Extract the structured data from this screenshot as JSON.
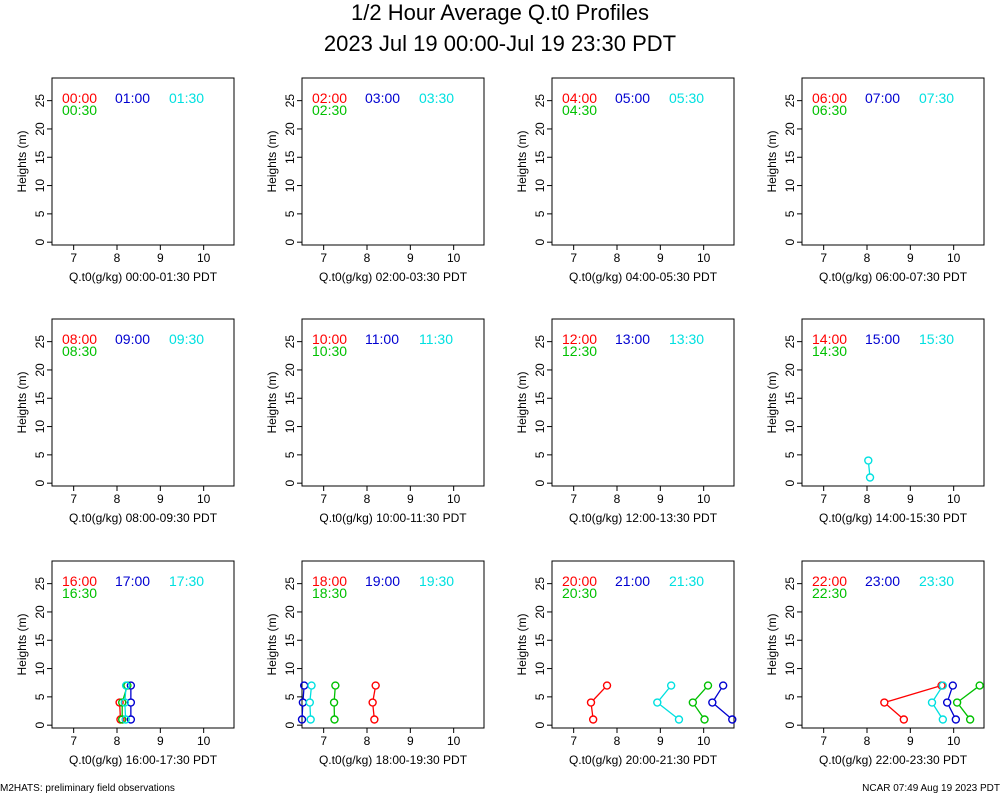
{
  "header": {
    "title": "1/2 Hour Average Q.t0 Profiles",
    "subtitle": "2023 Jul 19 00:00-Jul 19 23:30 PDT"
  },
  "footer": {
    "left": "M2HATS: preliminary field observations",
    "right": "NCAR 07:49 Aug 19 2023 PDT"
  },
  "colors": {
    "first": "#ff0000",
    "second": "#00c000",
    "third": "#0000d0",
    "fourth": "#00e0e0"
  },
  "chart_data": [
    {
      "type": "scatter",
      "xlabel": "Q.t0(g/kg) 00:00-01:30 PDT",
      "ylabel": "Heights (m)",
      "xlim": [
        6.5,
        10.7
      ],
      "ylim": [
        -0.5,
        29
      ],
      "xticks": [
        "7",
        "8",
        "9",
        "10"
      ],
      "yticks": [
        "0",
        "5",
        "10",
        "15",
        "20",
        "25"
      ],
      "series": [
        {
          "name": "00:00",
          "color": "#ff0000",
          "points": []
        },
        {
          "name": "00:30",
          "color": "#00c000",
          "points": []
        },
        {
          "name": "01:00",
          "color": "#0000d0",
          "points": []
        },
        {
          "name": "01:30",
          "color": "#00e0e0",
          "points": []
        }
      ]
    },
    {
      "type": "scatter",
      "xlabel": "Q.t0(g/kg) 02:00-03:30 PDT",
      "ylabel": "Heights (m)",
      "xlim": [
        6.5,
        10.7
      ],
      "ylim": [
        -0.5,
        29
      ],
      "xticks": [
        "7",
        "8",
        "9",
        "10"
      ],
      "yticks": [
        "0",
        "5",
        "10",
        "15",
        "20",
        "25"
      ],
      "series": [
        {
          "name": "02:00",
          "color": "#ff0000",
          "points": []
        },
        {
          "name": "02:30",
          "color": "#00c000",
          "points": []
        },
        {
          "name": "03:00",
          "color": "#0000d0",
          "points": []
        },
        {
          "name": "03:30",
          "color": "#00e0e0",
          "points": []
        }
      ]
    },
    {
      "type": "scatter",
      "xlabel": "Q.t0(g/kg) 04:00-05:30 PDT",
      "ylabel": "Heights (m)",
      "xlim": [
        6.5,
        10.7
      ],
      "ylim": [
        -0.5,
        29
      ],
      "xticks": [
        "7",
        "8",
        "9",
        "10"
      ],
      "yticks": [
        "0",
        "5",
        "10",
        "15",
        "20",
        "25"
      ],
      "series": [
        {
          "name": "04:00",
          "color": "#ff0000",
          "points": []
        },
        {
          "name": "04:30",
          "color": "#00c000",
          "points": []
        },
        {
          "name": "05:00",
          "color": "#0000d0",
          "points": []
        },
        {
          "name": "05:30",
          "color": "#00e0e0",
          "points": []
        }
      ]
    },
    {
      "type": "scatter",
      "xlabel": "Q.t0(g/kg) 06:00-07:30 PDT",
      "ylabel": "Heights (m)",
      "xlim": [
        6.5,
        10.7
      ],
      "ylim": [
        -0.5,
        29
      ],
      "xticks": [
        "7",
        "8",
        "9",
        "10"
      ],
      "yticks": [
        "0",
        "5",
        "10",
        "15",
        "20",
        "25"
      ],
      "series": [
        {
          "name": "06:00",
          "color": "#ff0000",
          "points": []
        },
        {
          "name": "06:30",
          "color": "#00c000",
          "points": []
        },
        {
          "name": "07:00",
          "color": "#0000d0",
          "points": []
        },
        {
          "name": "07:30",
          "color": "#00e0e0",
          "points": []
        }
      ]
    },
    {
      "type": "scatter",
      "xlabel": "Q.t0(g/kg) 08:00-09:30 PDT",
      "ylabel": "Heights (m)",
      "xlim": [
        6.5,
        10.7
      ],
      "ylim": [
        -0.5,
        29
      ],
      "xticks": [
        "7",
        "8",
        "9",
        "10"
      ],
      "yticks": [
        "0",
        "5",
        "10",
        "15",
        "20",
        "25"
      ],
      "series": [
        {
          "name": "08:00",
          "color": "#ff0000",
          "points": []
        },
        {
          "name": "08:30",
          "color": "#00c000",
          "points": []
        },
        {
          "name": "09:00",
          "color": "#0000d0",
          "points": []
        },
        {
          "name": "09:30",
          "color": "#00e0e0",
          "points": []
        }
      ]
    },
    {
      "type": "scatter",
      "xlabel": "Q.t0(g/kg) 10:00-11:30 PDT",
      "ylabel": "Heights (m)",
      "xlim": [
        6.5,
        10.7
      ],
      "ylim": [
        -0.5,
        29
      ],
      "xticks": [
        "7",
        "8",
        "9",
        "10"
      ],
      "yticks": [
        "0",
        "5",
        "10",
        "15",
        "20",
        "25"
      ],
      "series": [
        {
          "name": "10:00",
          "color": "#ff0000",
          "points": []
        },
        {
          "name": "10:30",
          "color": "#00c000",
          "points": []
        },
        {
          "name": "11:00",
          "color": "#0000d0",
          "points": []
        },
        {
          "name": "11:30",
          "color": "#00e0e0",
          "points": []
        }
      ]
    },
    {
      "type": "scatter",
      "xlabel": "Q.t0(g/kg) 12:00-13:30 PDT",
      "ylabel": "Heights (m)",
      "xlim": [
        6.5,
        10.7
      ],
      "ylim": [
        -0.5,
        29
      ],
      "xticks": [
        "7",
        "8",
        "9",
        "10"
      ],
      "yticks": [
        "0",
        "5",
        "10",
        "15",
        "20",
        "25"
      ],
      "series": [
        {
          "name": "12:00",
          "color": "#ff0000",
          "points": []
        },
        {
          "name": "12:30",
          "color": "#00c000",
          "points": []
        },
        {
          "name": "13:00",
          "color": "#0000d0",
          "points": []
        },
        {
          "name": "13:30",
          "color": "#00e0e0",
          "points": []
        }
      ]
    },
    {
      "type": "scatter",
      "xlabel": "Q.t0(g/kg) 14:00-15:30 PDT",
      "ylabel": "Heights (m)",
      "xlim": [
        6.5,
        10.7
      ],
      "ylim": [
        -0.5,
        29
      ],
      "xticks": [
        "7",
        "8",
        "9",
        "10"
      ],
      "yticks": [
        "0",
        "5",
        "10",
        "15",
        "20",
        "25"
      ],
      "series": [
        {
          "name": "14:00",
          "color": "#ff0000",
          "points": []
        },
        {
          "name": "14:30",
          "color": "#00c000",
          "points": []
        },
        {
          "name": "15:00",
          "color": "#0000d0",
          "points": []
        },
        {
          "name": "15:30",
          "color": "#00e0e0",
          "points": [
            [
              8.07,
              1
            ],
            [
              8.03,
              4
            ]
          ]
        }
      ]
    },
    {
      "type": "scatter",
      "xlabel": "Q.t0(g/kg) 16:00-17:30 PDT",
      "ylabel": "Heights (m)",
      "xlim": [
        6.5,
        10.7
      ],
      "ylim": [
        -0.5,
        29
      ],
      "xticks": [
        "7",
        "8",
        "9",
        "10"
      ],
      "yticks": [
        "0",
        "5",
        "10",
        "15",
        "20",
        "25"
      ],
      "series": [
        {
          "name": "16:00",
          "color": "#ff0000",
          "points": [
            [
              8.08,
              1
            ],
            [
              8.06,
              4
            ]
          ]
        },
        {
          "name": "16:30",
          "color": "#00c000",
          "points": [
            [
              8.12,
              1
            ],
            [
              8.12,
              4
            ],
            [
              8.24,
              7
            ]
          ]
        },
        {
          "name": "17:00",
          "color": "#0000d0",
          "points": [
            [
              8.32,
              1
            ],
            [
              8.32,
              4
            ],
            [
              8.32,
              7
            ]
          ]
        },
        {
          "name": "17:30",
          "color": "#00e0e0",
          "points": [
            [
              8.2,
              1
            ],
            [
              8.18,
              4
            ],
            [
              8.21,
              7
            ]
          ]
        }
      ]
    },
    {
      "type": "scatter",
      "xlabel": "Q.t0(g/kg) 18:00-19:30 PDT",
      "ylabel": "Heights (m)",
      "xlim": [
        6.5,
        10.7
      ],
      "ylim": [
        -0.5,
        29
      ],
      "xticks": [
        "7",
        "8",
        "9",
        "10"
      ],
      "yticks": [
        "0",
        "5",
        "10",
        "15",
        "20",
        "25"
      ],
      "series": [
        {
          "name": "18:00",
          "color": "#ff0000",
          "points": [
            [
              8.17,
              1
            ],
            [
              8.13,
              4
            ],
            [
              8.2,
              7
            ]
          ]
        },
        {
          "name": "18:30",
          "color": "#00c000",
          "points": [
            [
              7.25,
              1
            ],
            [
              7.24,
              4
            ],
            [
              7.27,
              7
            ]
          ]
        },
        {
          "name": "19:00",
          "color": "#0000d0",
          "points": [
            [
              6.5,
              1
            ],
            [
              6.52,
              4
            ],
            [
              6.55,
              7
            ]
          ]
        },
        {
          "name": "19:30",
          "color": "#00e0e0",
          "points": [
            [
              6.7,
              1
            ],
            [
              6.68,
              4
            ],
            [
              6.72,
              7
            ]
          ]
        }
      ]
    },
    {
      "type": "scatter",
      "xlabel": "Q.t0(g/kg) 20:00-21:30 PDT",
      "ylabel": "Heights (m)",
      "xlim": [
        6.5,
        10.7
      ],
      "ylim": [
        -0.5,
        29
      ],
      "xticks": [
        "7",
        "8",
        "9",
        "10"
      ],
      "yticks": [
        "0",
        "5",
        "10",
        "15",
        "20",
        "25"
      ],
      "series": [
        {
          "name": "20:00",
          "color": "#ff0000",
          "points": [
            [
              7.45,
              1
            ],
            [
              7.4,
              4
            ],
            [
              7.77,
              7
            ]
          ]
        },
        {
          "name": "20:30",
          "color": "#00c000",
          "points": [
            [
              10.02,
              1
            ],
            [
              9.75,
              4
            ],
            [
              10.1,
              7
            ]
          ]
        },
        {
          "name": "21:00",
          "color": "#0000d0",
          "points": [
            [
              10.66,
              1
            ],
            [
              10.2,
              4
            ],
            [
              10.45,
              7
            ]
          ]
        },
        {
          "name": "21:30",
          "color": "#00e0e0",
          "points": [
            [
              9.43,
              1
            ],
            [
              8.93,
              4
            ],
            [
              9.25,
              7
            ]
          ]
        }
      ]
    },
    {
      "type": "scatter",
      "xlabel": "Q.t0(g/kg) 22:00-23:30 PDT",
      "ylabel": "Heights (m)",
      "xlim": [
        6.5,
        10.7
      ],
      "ylim": [
        -0.5,
        29
      ],
      "xticks": [
        "7",
        "8",
        "9",
        "10"
      ],
      "yticks": [
        "0",
        "5",
        "10",
        "15",
        "20",
        "25"
      ],
      "series": [
        {
          "name": "22:00",
          "color": "#ff0000",
          "points": [
            [
              8.85,
              1
            ],
            [
              8.4,
              4
            ],
            [
              9.72,
              7
            ]
          ]
        },
        {
          "name": "22:30",
          "color": "#00c000",
          "points": [
            [
              10.38,
              1
            ],
            [
              10.08,
              4
            ],
            [
              10.6,
              7
            ]
          ]
        },
        {
          "name": "23:00",
          "color": "#0000d0",
          "points": [
            [
              10.05,
              1
            ],
            [
              9.85,
              4
            ],
            [
              9.98,
              7
            ]
          ]
        },
        {
          "name": "23:30",
          "color": "#00e0e0",
          "points": [
            [
              9.75,
              1
            ],
            [
              9.5,
              4
            ],
            [
              9.75,
              7
            ]
          ]
        }
      ]
    }
  ]
}
